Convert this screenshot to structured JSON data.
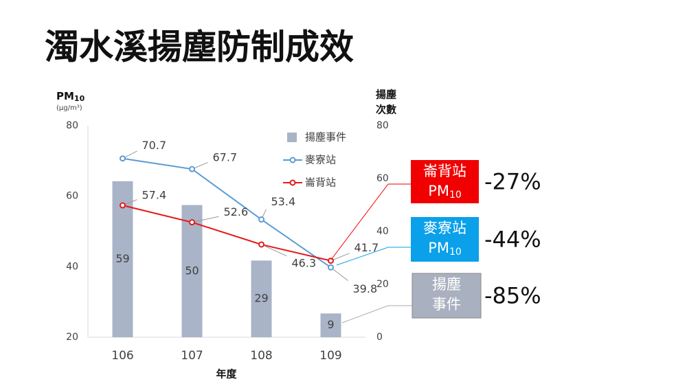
{
  "title": "濁水溪揚塵防制成效",
  "chart_data": {
    "type": "combo",
    "categories": [
      "106",
      "107",
      "108",
      "109"
    ],
    "xlabel": "年度",
    "ylabel": [
      "PM",
      "10"
    ],
    "ylabel_unit": "(μg/m³)",
    "y2label": [
      "揚塵",
      "次數"
    ],
    "ylim": [
      20,
      80
    ],
    "yticks": [
      20,
      40,
      60,
      80
    ],
    "y2lim": [
      0,
      80
    ],
    "y2ticks": [
      0,
      20,
      40,
      60,
      80
    ],
    "series": [
      {
        "name": "揚塵事件",
        "type": "bar",
        "axis": "y2",
        "color": "#aab4c8",
        "values": [
          59,
          50,
          29,
          9
        ]
      },
      {
        "name": "麥寮站",
        "type": "line",
        "color": "#5b9bd5",
        "values": [
          70.7,
          67.7,
          53.4,
          39.8
        ]
      },
      {
        "name": "崙背站",
        "type": "line",
        "color": "#e31a1a",
        "values": [
          57.4,
          52.6,
          46.3,
          41.7
        ]
      }
    ]
  },
  "callouts": [
    {
      "lines": [
        [
          "崙背站"
        ],
        [
          "PM",
          "10"
        ]
      ],
      "change": "-27%",
      "color": "#f00000"
    },
    {
      "lines": [
        [
          "麥寮站"
        ],
        [
          "PM",
          "10"
        ]
      ],
      "change": "-44%",
      "color": "#0aa0ea"
    },
    {
      "lines": [
        [
          "揚塵"
        ],
        [
          "事件"
        ]
      ],
      "change": "-85%",
      "color": "#a9b0bf"
    }
  ]
}
